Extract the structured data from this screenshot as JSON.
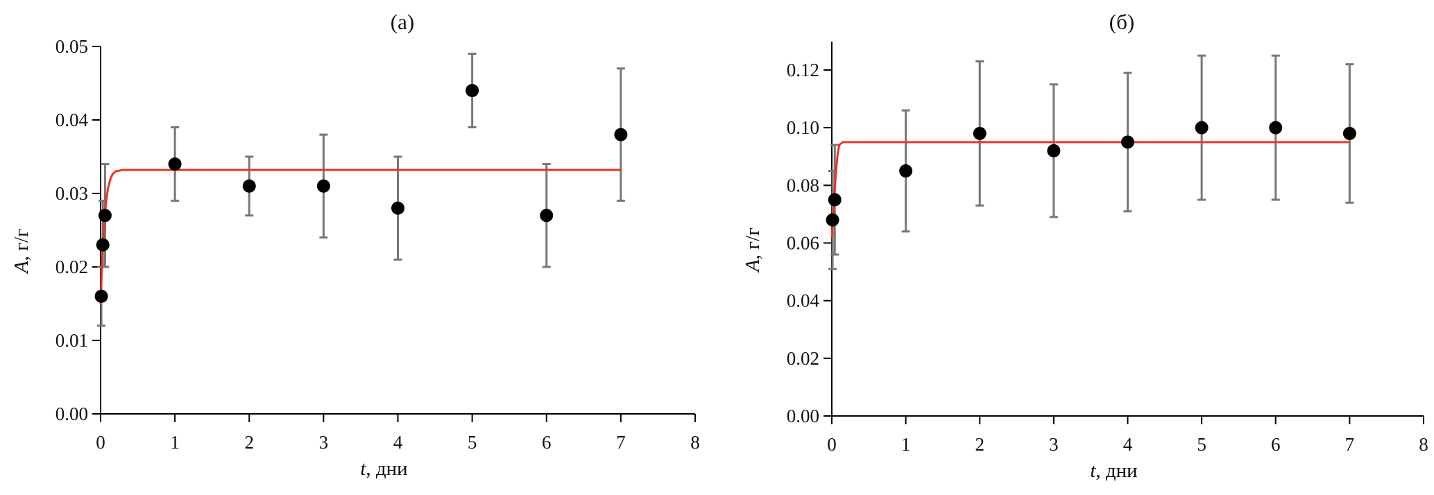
{
  "colors": {
    "points": "#000000",
    "error_bars": "#777777",
    "fit_line": "#ee3224",
    "axes": "#000000"
  },
  "chart_data": [
    {
      "type": "scatter",
      "title": "(а)",
      "xlabel_italic": "t",
      "xlabel_rest": ", дни",
      "ylabel_italic": "A",
      "ylabel_rest": ", г/г",
      "xlim": [
        0,
        8
      ],
      "ylim": [
        0,
        0.05
      ],
      "xticks": [
        "0",
        "1",
        "2",
        "3",
        "4",
        "5",
        "6",
        "7",
        "8"
      ],
      "yticks": [
        "0.00",
        "0.01",
        "0.02",
        "0.03",
        "0.04",
        "0.05"
      ],
      "grid": false,
      "points": [
        {
          "x": 0.01,
          "y": 0.016,
          "err_low": 0.012,
          "err_high": 0.02
        },
        {
          "x": 0.03,
          "y": 0.023,
          "err_low": 0.02,
          "err_high": 0.029
        },
        {
          "x": 0.06,
          "y": 0.027,
          "err_low": 0.02,
          "err_high": 0.034
        },
        {
          "x": 1,
          "y": 0.034,
          "err_low": 0.029,
          "err_high": 0.039
        },
        {
          "x": 2,
          "y": 0.031,
          "err_low": 0.027,
          "err_high": 0.035
        },
        {
          "x": 3,
          "y": 0.031,
          "err_low": 0.024,
          "err_high": 0.038
        },
        {
          "x": 4,
          "y": 0.028,
          "err_low": 0.021,
          "err_high": 0.035
        },
        {
          "x": 5,
          "y": 0.044,
          "err_low": 0.039,
          "err_high": 0.049
        },
        {
          "x": 6,
          "y": 0.027,
          "err_low": 0.02,
          "err_high": 0.034
        },
        {
          "x": 7,
          "y": 0.038,
          "err_low": 0.029,
          "err_high": 0.047
        }
      ],
      "fit_line": {
        "x": [
          0,
          0.02,
          0.04,
          0.06,
          0.08,
          0.1,
          0.13,
          0.16,
          0.2,
          0.3,
          7
        ],
        "y": [
          0.015,
          0.0207,
          0.0247,
          0.0274,
          0.0294,
          0.0307,
          0.0319,
          0.0326,
          0.033,
          0.0332,
          0.0332
        ]
      }
    },
    {
      "type": "scatter",
      "title": "(б)",
      "xlabel_italic": "t",
      "xlabel_rest": ", дни",
      "ylabel_italic": "A",
      "ylabel_rest": ", г/г",
      "xlim": [
        0,
        8
      ],
      "ylim": [
        0,
        0.13
      ],
      "xticks": [
        "0",
        "1",
        "2",
        "3",
        "4",
        "5",
        "6",
        "7",
        "8"
      ],
      "yticks": [
        "0.00",
        "0.02",
        "0.04",
        "0.06",
        "0.08",
        "0.10",
        "0.12"
      ],
      "grid": false,
      "points": [
        {
          "x": 0.01,
          "y": 0.068,
          "err_low": 0.051,
          "err_high": 0.085
        },
        {
          "x": 0.04,
          "y": 0.075,
          "err_low": 0.056,
          "err_high": 0.094
        },
        {
          "x": 1,
          "y": 0.085,
          "err_low": 0.064,
          "err_high": 0.106
        },
        {
          "x": 2,
          "y": 0.098,
          "err_low": 0.073,
          "err_high": 0.123
        },
        {
          "x": 3,
          "y": 0.092,
          "err_low": 0.069,
          "err_high": 0.115
        },
        {
          "x": 4,
          "y": 0.095,
          "err_low": 0.071,
          "err_high": 0.119
        },
        {
          "x": 5,
          "y": 0.1,
          "err_low": 0.075,
          "err_high": 0.125
        },
        {
          "x": 6,
          "y": 0.1,
          "err_low": 0.075,
          "err_high": 0.125
        },
        {
          "x": 7,
          "y": 0.098,
          "err_low": 0.074,
          "err_high": 0.122
        }
      ],
      "fit_line": {
        "x": [
          0,
          0.02,
          0.04,
          0.06,
          0.08,
          0.1,
          0.15,
          7
        ],
        "y": [
          0.062,
          0.071,
          0.079,
          0.086,
          0.091,
          0.094,
          0.095,
          0.095
        ]
      }
    }
  ]
}
